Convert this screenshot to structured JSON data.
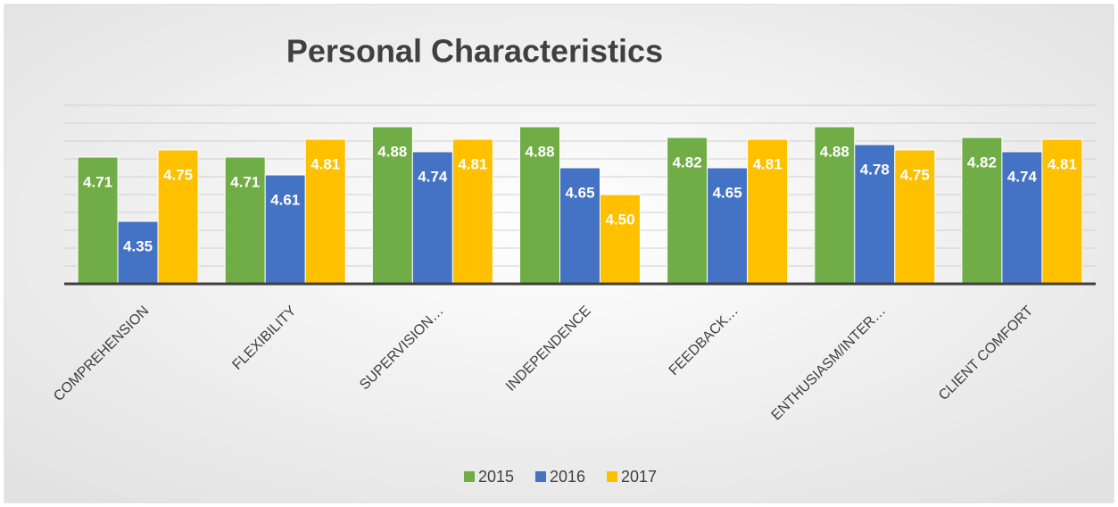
{
  "chart_data": {
    "type": "bar",
    "title": "Personal Characteristics",
    "categories": [
      "COMPREHENSION",
      "FLEXIBILITY",
      "SUPERVISION…",
      "INDEPENDENCE",
      "FEEDBACK…",
      "ENTHUSIASM/INTER…",
      "CLIENT COMFORT"
    ],
    "series": [
      {
        "name": "2015",
        "color": "#70ad47",
        "values": [
          4.71,
          4.71,
          4.88,
          4.88,
          4.82,
          4.88,
          4.82
        ],
        "value_labels": [
          "4.71",
          "4.71",
          "4.88",
          "4.88",
          "4.82",
          "4.88",
          "4.82"
        ]
      },
      {
        "name": "2016",
        "color": "#4472c4",
        "values": [
          4.35,
          4.61,
          4.74,
          4.65,
          4.65,
          4.78,
          4.74
        ],
        "value_labels": [
          "4.35",
          "4.61",
          "4.74",
          "4.65",
          "4.65",
          "4.78",
          "4.74"
        ]
      },
      {
        "name": "2017",
        "color": "#ffc000",
        "values": [
          4.75,
          4.81,
          4.81,
          4.5,
          4.81,
          4.75,
          4.81
        ],
        "value_labels": [
          "4.75",
          "4.81",
          "4.81",
          "4.50",
          "4.81",
          "4.75",
          "4.81"
        ]
      }
    ],
    "ylim": [
      4.0,
      5.0
    ],
    "yticks": [
      4.1,
      4.2,
      4.3,
      4.4,
      4.5,
      4.6,
      4.7,
      4.8,
      4.9,
      5.0
    ],
    "grid": true,
    "legend": "bottom"
  }
}
